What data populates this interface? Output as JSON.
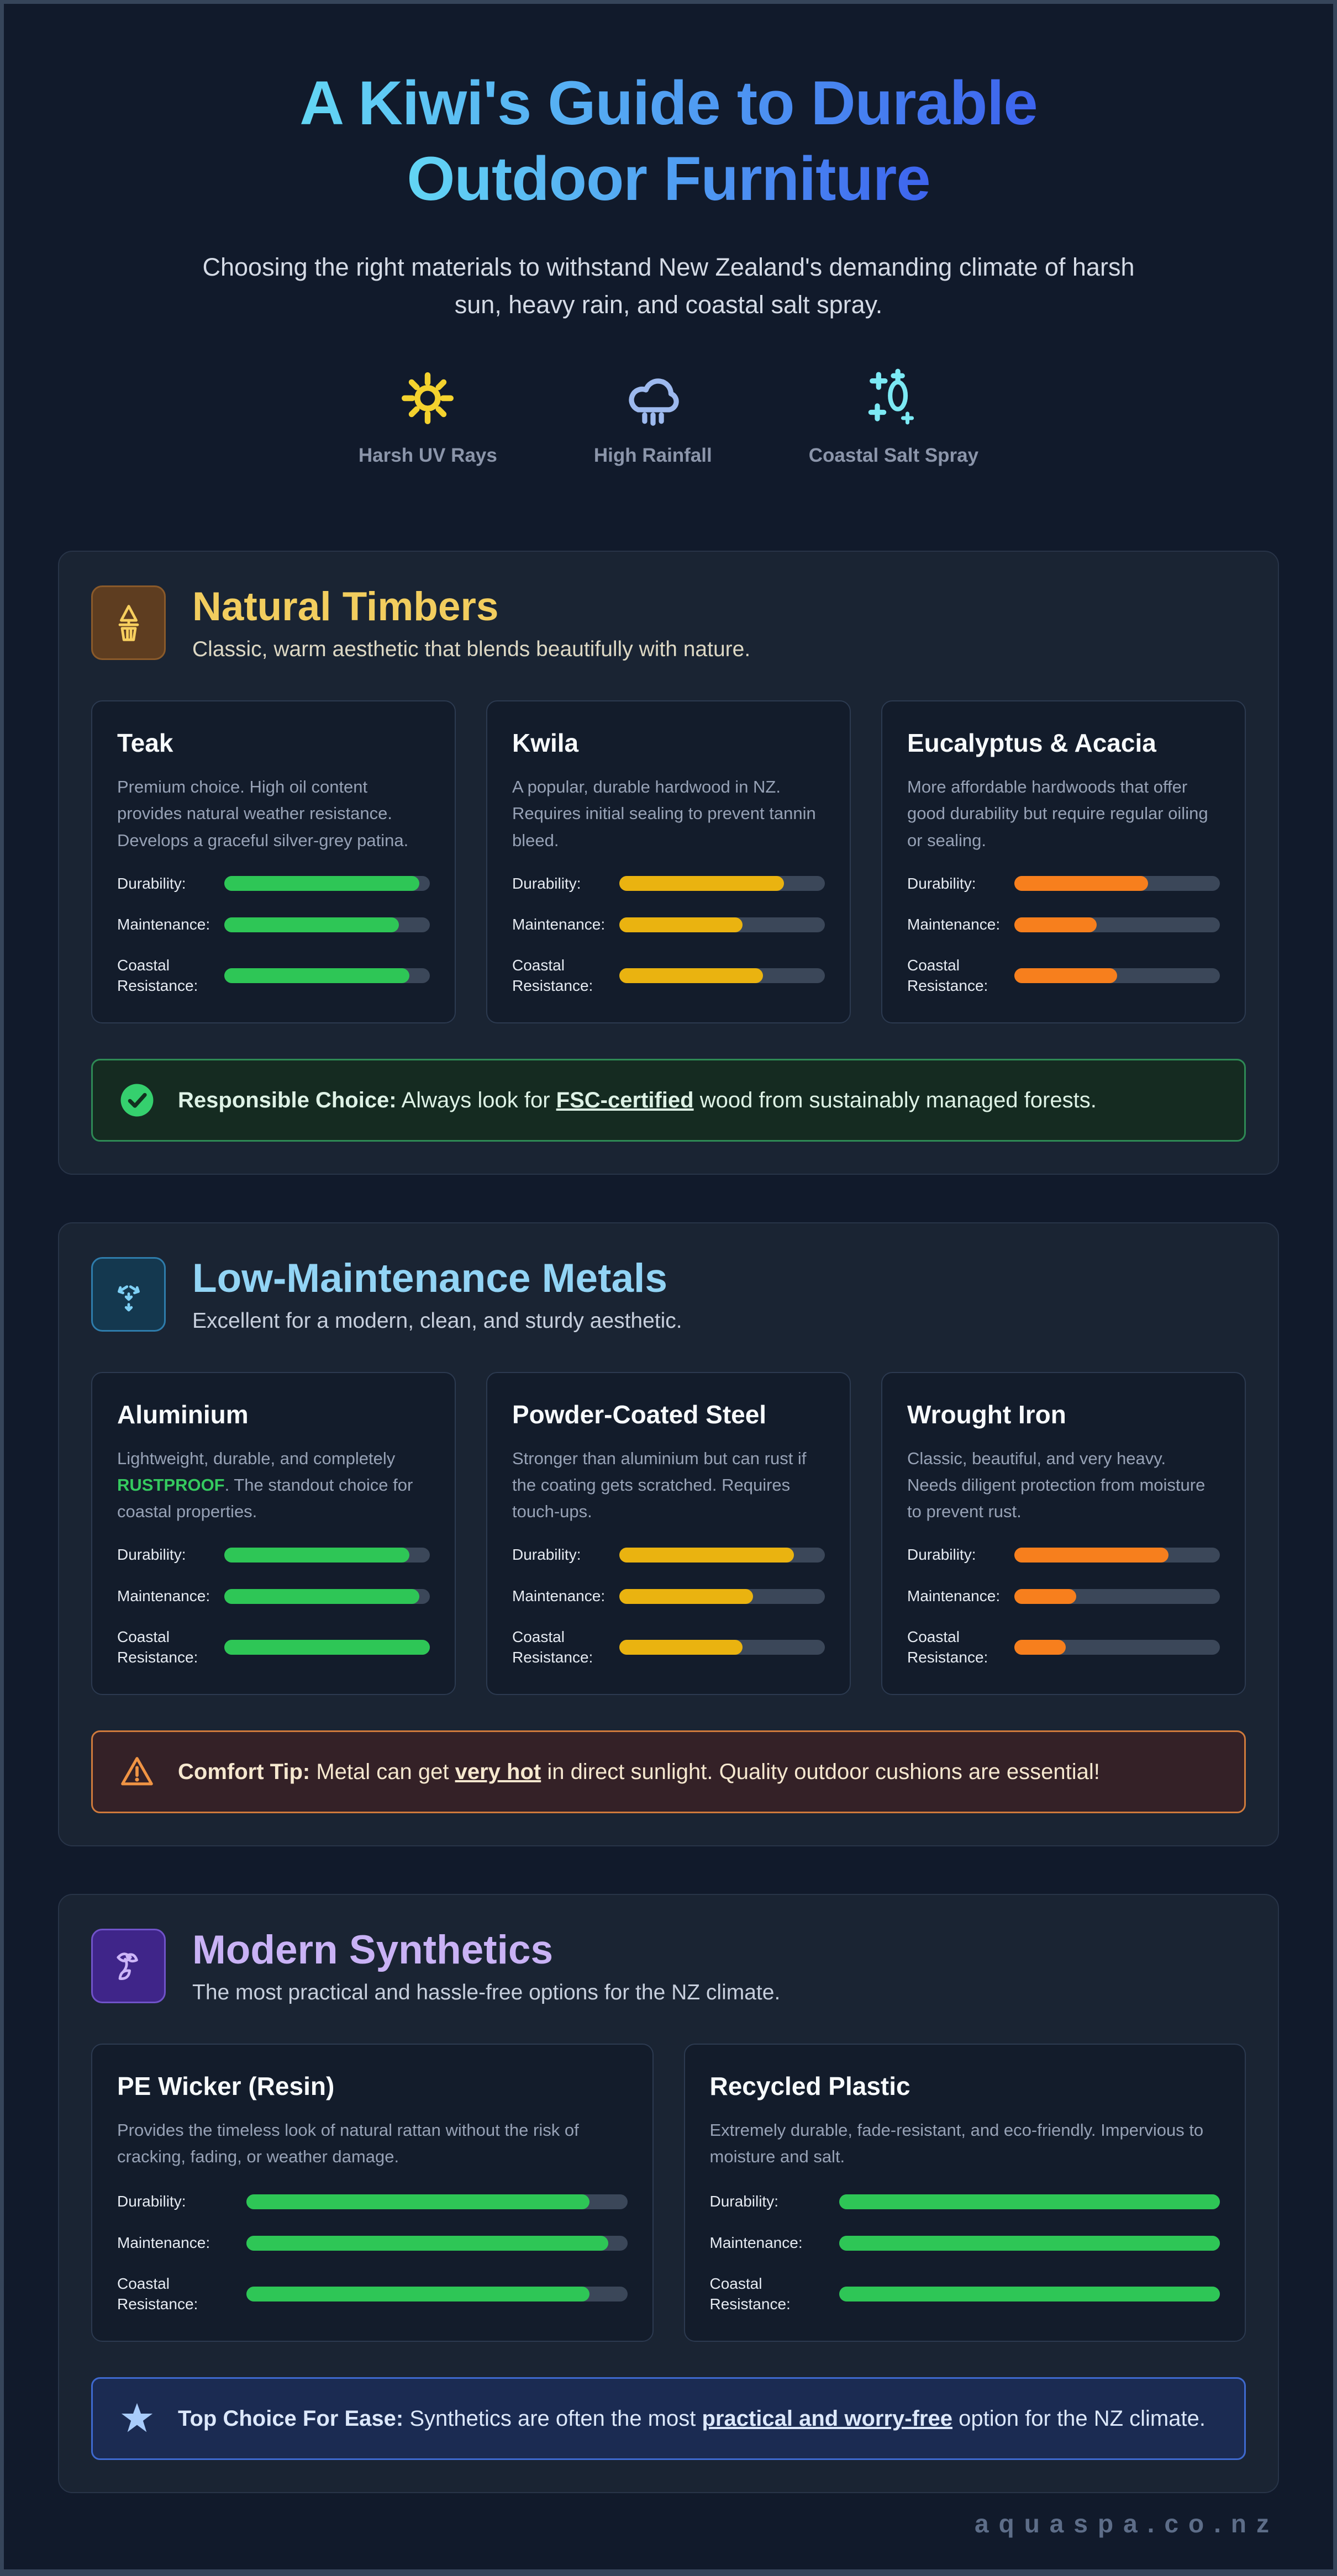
{
  "page": {
    "title_line1": "A Kiwi's Guide to Durable",
    "title_line2": "Outdoor Furniture",
    "subtitle": "Choosing the right materials to withstand New Zealand's demanding climate of harsh sun, heavy rain, and coastal salt spray.",
    "footer_brand": "aquaspa.co.nz"
  },
  "climate_badges": [
    {
      "icon": "sun-icon",
      "label": "Harsh UV Rays",
      "color": "#f4d22e"
    },
    {
      "icon": "rain-cloud-icon",
      "label": "High Rainfall",
      "color": "#9db9ee"
    },
    {
      "icon": "salt-spray-icon",
      "label": "Coastal Salt Spray",
      "color": "#7ce9f4"
    }
  ],
  "stat_labels": {
    "durability": "Durability:",
    "maintenance": "Maintenance:",
    "coastal": "Coastal Resistance:"
  },
  "rating_colors": {
    "good": "#2ec656",
    "medium": "#eab310",
    "poor": "#f77f1d"
  },
  "sections": [
    {
      "title": "Natural Timbers",
      "subtitle": "Classic, warm aesthetic that blends beautifully with nature.",
      "accent": "#f2cd5e",
      "icon": "timber-planter-icon",
      "cards": [
        {
          "title": "Teak",
          "desc": {
            "pre": "Premium choice. High oil content provides natural weather resistance. Develops a graceful silver-grey patina.",
            "em": "",
            "post": ""
          },
          "bar_color": "#2ec656",
          "stats": {
            "durability": 95,
            "maintenance": 85,
            "coastal": 90
          }
        },
        {
          "title": "Kwila",
          "desc": {
            "pre": "A popular, durable hardwood in NZ. Requires initial sealing to prevent tannin bleed.",
            "em": "",
            "post": ""
          },
          "bar_color": "#eab310",
          "stats": {
            "durability": 80,
            "maintenance": 60,
            "coastal": 70
          }
        },
        {
          "title": "Eucalyptus & Acacia",
          "desc": {
            "pre": "More affordable hardwoods that offer good durability but require regular oiling or sealing.",
            "em": "",
            "post": ""
          },
          "bar_color": "#f77f1d",
          "stats": {
            "durability": 65,
            "maintenance": 40,
            "coastal": 50
          }
        }
      ],
      "callout": {
        "icon": "check-circle-icon",
        "lead": "Responsible Choice:",
        "pre": " Always look for ",
        "em": "FSC-certified",
        "post": " wood from sustainably managed forests.",
        "border_color": "#2e8a55"
      }
    },
    {
      "title": "Low-Maintenance Metals",
      "subtitle": "Excellent for a modern, clean, and sturdy aesthetic.",
      "accent": "#92d4f5",
      "icon": "metal-arrows-icon",
      "cards": [
        {
          "title": "Aluminium",
          "desc": {
            "pre": "Lightweight, durable, and completely ",
            "em": "RUSTPROOF",
            "post": ". The standout choice for coastal properties."
          },
          "bar_color": "#2ec656",
          "stats": {
            "durability": 90,
            "maintenance": 95,
            "coastal": 100
          }
        },
        {
          "title": "Powder-Coated Steel",
          "desc": {
            "pre": "Stronger than aluminium but can rust if the coating gets scratched. Requires touch-ups.",
            "em": "",
            "post": ""
          },
          "bar_color": "#eab310",
          "stats": {
            "durability": 85,
            "maintenance": 65,
            "coastal": 60
          }
        },
        {
          "title": "Wrought Iron",
          "desc": {
            "pre": "Classic, beautiful, and very heavy. Needs diligent protection from moisture to prevent rust.",
            "em": "",
            "post": ""
          },
          "bar_color": "#f77f1d",
          "stats": {
            "durability": 75,
            "maintenance": 30,
            "coastal": 25
          }
        }
      ],
      "callout": {
        "icon": "warning-icon",
        "lead": "Comfort Tip:",
        "pre": " Metal can get ",
        "em": "very hot",
        "post": " in direct sunlight. Quality outdoor cushions are essential!",
        "border_color": "#cf7a3c"
      }
    },
    {
      "title": "Modern Synthetics",
      "subtitle": "The most practical and hassle-free options for the NZ climate.",
      "accent": "#c9b2f5",
      "icon": "weave-icon",
      "cards": [
        {
          "title": "PE Wicker (Resin)",
          "desc": {
            "pre": "Provides the timeless look of natural rattan without the risk of cracking, fading, or weather damage.",
            "em": "",
            "post": ""
          },
          "bar_color": "#2ec656",
          "stats": {
            "durability": 90,
            "maintenance": 95,
            "coastal": 90
          }
        },
        {
          "title": "Recycled Plastic",
          "desc": {
            "pre": "Extremely durable, fade-resistant, and eco-friendly. Impervious to moisture and salt.",
            "em": "",
            "post": ""
          },
          "bar_color": "#2ec656",
          "stats": {
            "durability": 100,
            "maintenance": 100,
            "coastal": 100
          }
        }
      ],
      "callout": {
        "icon": "star-icon",
        "lead": "Top Choice For Ease:",
        "pre": " Synthetics are often the most ",
        "em": "practical and worry-free",
        "post": " option for the NZ climate.",
        "border_color": "#3e69cf"
      }
    }
  ]
}
